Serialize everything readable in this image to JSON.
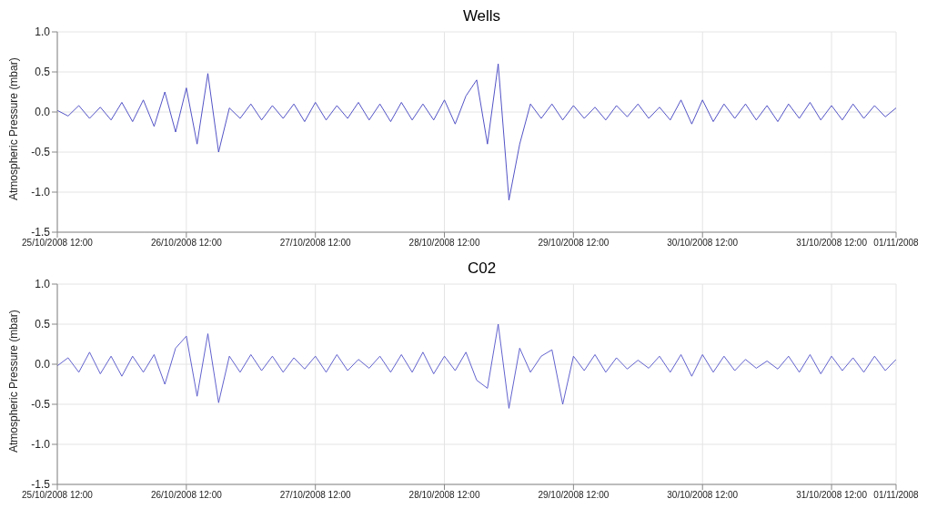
{
  "chart_data": [
    {
      "type": "line",
      "title": "Wells",
      "ylabel": "Atmospheric Pressure (mbar)",
      "grid": true,
      "x": [
        "2008-10-25T12:00",
        "2008-10-25T14:00",
        "2008-10-25T16:00",
        "2008-10-25T18:00",
        "2008-10-25T20:00",
        "2008-10-25T22:00",
        "2008-10-26T00:00",
        "2008-10-26T02:00",
        "2008-10-26T04:00",
        "2008-10-26T06:00",
        "2008-10-26T08:00",
        "2008-10-26T10:00",
        "2008-10-26T12:00",
        "2008-10-26T14:00",
        "2008-10-26T16:00",
        "2008-10-26T18:00",
        "2008-10-26T20:00",
        "2008-10-26T22:00",
        "2008-10-27T00:00",
        "2008-10-27T02:00",
        "2008-10-27T04:00",
        "2008-10-27T06:00",
        "2008-10-27T08:00",
        "2008-10-27T10:00",
        "2008-10-27T12:00",
        "2008-10-27T14:00",
        "2008-10-27T16:00",
        "2008-10-27T18:00",
        "2008-10-27T20:00",
        "2008-10-27T22:00",
        "2008-10-28T00:00",
        "2008-10-28T02:00",
        "2008-10-28T04:00",
        "2008-10-28T06:00",
        "2008-10-28T08:00",
        "2008-10-28T10:00",
        "2008-10-28T12:00",
        "2008-10-28T14:00",
        "2008-10-28T16:00",
        "2008-10-28T18:00",
        "2008-10-28T20:00",
        "2008-10-28T22:00",
        "2008-10-29T00:00",
        "2008-10-29T02:00",
        "2008-10-29T04:00",
        "2008-10-29T06:00",
        "2008-10-29T08:00",
        "2008-10-29T10:00",
        "2008-10-29T12:00",
        "2008-10-29T14:00",
        "2008-10-29T16:00",
        "2008-10-29T18:00",
        "2008-10-29T20:00",
        "2008-10-29T22:00",
        "2008-10-30T00:00",
        "2008-10-30T02:00",
        "2008-10-30T04:00",
        "2008-10-30T06:00",
        "2008-10-30T08:00",
        "2008-10-30T10:00",
        "2008-10-30T12:00",
        "2008-10-30T14:00",
        "2008-10-30T16:00",
        "2008-10-30T18:00",
        "2008-10-30T20:00",
        "2008-10-30T22:00",
        "2008-10-31T00:00",
        "2008-10-31T02:00",
        "2008-10-31T04:00",
        "2008-10-31T06:00",
        "2008-10-31T08:00",
        "2008-10-31T10:00",
        "2008-10-31T12:00",
        "2008-10-31T14:00",
        "2008-10-31T16:00",
        "2008-10-31T18:00",
        "2008-10-31T20:00",
        "2008-10-31T22:00",
        "2008-11-01T00:00"
      ],
      "series": [
        {
          "color": "#4040c0",
          "values": [
            0.02,
            -0.05,
            0.08,
            -0.08,
            0.06,
            -0.1,
            0.12,
            -0.12,
            0.15,
            -0.18,
            0.25,
            -0.25,
            0.3,
            -0.4,
            0.48,
            -0.5,
            0.05,
            -0.08,
            0.1,
            -0.1,
            0.08,
            -0.08,
            0.1,
            -0.12,
            0.12,
            -0.1,
            0.08,
            -0.08,
            0.12,
            -0.1,
            0.1,
            -0.12,
            0.12,
            -0.1,
            0.1,
            -0.1,
            0.15,
            -0.15,
            0.2,
            0.4,
            -0.4,
            0.6,
            -1.1,
            -0.4,
            0.1,
            -0.08,
            0.1,
            -0.1,
            0.08,
            -0.08,
            0.06,
            -0.1,
            0.08,
            -0.06,
            0.1,
            -0.08,
            0.06,
            -0.1,
            0.15,
            -0.15,
            0.15,
            -0.12,
            0.1,
            -0.08,
            0.1,
            -0.1,
            0.08,
            -0.12,
            0.1,
            -0.08,
            0.12,
            -0.1,
            0.08,
            -0.1,
            0.1,
            -0.08,
            0.08,
            -0.06,
            0.05
          ]
        }
      ],
      "xlim": [
        "2008-10-25T12:00",
        "2008-11-01T00:00"
      ],
      "xticks": [
        {
          "value": "2008-10-25T12:00",
          "label": "25/10/2008 12:00"
        },
        {
          "value": "2008-10-26T12:00",
          "label": "26/10/2008 12:00"
        },
        {
          "value": "2008-10-27T12:00",
          "label": "27/10/2008 12:00"
        },
        {
          "value": "2008-10-28T12:00",
          "label": "28/10/2008 12:00"
        },
        {
          "value": "2008-10-29T12:00",
          "label": "29/10/2008 12:00"
        },
        {
          "value": "2008-10-30T12:00",
          "label": "30/10/2008 12:00"
        },
        {
          "value": "2008-10-31T12:00",
          "label": "31/10/2008 12:00"
        },
        {
          "value": "2008-11-01T00:00",
          "label": "01/11/2008"
        }
      ],
      "ylim": [
        -1.5,
        1
      ],
      "yticks": [
        {
          "value": -1.5,
          "label": "-1.5"
        },
        {
          "value": -1,
          "label": "-1.0"
        },
        {
          "value": -0.5,
          "label": "-0.5"
        },
        {
          "value": 0,
          "label": "0.0"
        },
        {
          "value": 0.5,
          "label": "0.5"
        },
        {
          "value": 1,
          "label": "1.0"
        }
      ]
    },
    {
      "type": "line",
      "title": "C02",
      "ylabel": "Atmospheric Pressure (mbar)",
      "grid": true,
      "x": [
        "2008-10-25T12:00",
        "2008-10-25T14:00",
        "2008-10-25T16:00",
        "2008-10-25T18:00",
        "2008-10-25T20:00",
        "2008-10-25T22:00",
        "2008-10-26T00:00",
        "2008-10-26T02:00",
        "2008-10-26T04:00",
        "2008-10-26T06:00",
        "2008-10-26T08:00",
        "2008-10-26T10:00",
        "2008-10-26T12:00",
        "2008-10-26T14:00",
        "2008-10-26T16:00",
        "2008-10-26T18:00",
        "2008-10-26T20:00",
        "2008-10-26T22:00",
        "2008-10-27T00:00",
        "2008-10-27T02:00",
        "2008-10-27T04:00",
        "2008-10-27T06:00",
        "2008-10-27T08:00",
        "2008-10-27T10:00",
        "2008-10-27T12:00",
        "2008-10-27T14:00",
        "2008-10-27T16:00",
        "2008-10-27T18:00",
        "2008-10-27T20:00",
        "2008-10-27T22:00",
        "2008-10-28T00:00",
        "2008-10-28T02:00",
        "2008-10-28T04:00",
        "2008-10-28T06:00",
        "2008-10-28T08:00",
        "2008-10-28T10:00",
        "2008-10-28T12:00",
        "2008-10-28T14:00",
        "2008-10-28T16:00",
        "2008-10-28T18:00",
        "2008-10-28T20:00",
        "2008-10-28T22:00",
        "2008-10-29T00:00",
        "2008-10-29T02:00",
        "2008-10-29T04:00",
        "2008-10-29T06:00",
        "2008-10-29T08:00",
        "2008-10-29T10:00",
        "2008-10-29T12:00",
        "2008-10-29T14:00",
        "2008-10-29T16:00",
        "2008-10-29T18:00",
        "2008-10-29T20:00",
        "2008-10-29T22:00",
        "2008-10-30T00:00",
        "2008-10-30T02:00",
        "2008-10-30T04:00",
        "2008-10-30T06:00",
        "2008-10-30T08:00",
        "2008-10-30T10:00",
        "2008-10-30T12:00",
        "2008-10-30T14:00",
        "2008-10-30T16:00",
        "2008-10-30T18:00",
        "2008-10-30T20:00",
        "2008-10-30T22:00",
        "2008-10-31T00:00",
        "2008-10-31T02:00",
        "2008-10-31T04:00",
        "2008-10-31T06:00",
        "2008-10-31T08:00",
        "2008-10-31T10:00",
        "2008-10-31T12:00",
        "2008-10-31T14:00",
        "2008-10-31T16:00",
        "2008-10-31T18:00",
        "2008-10-31T20:00",
        "2008-10-31T22:00",
        "2008-11-01T00:00"
      ],
      "series": [
        {
          "color": "#5050c8",
          "values": [
            -0.02,
            0.08,
            -0.1,
            0.15,
            -0.12,
            0.1,
            -0.15,
            0.1,
            -0.1,
            0.12,
            -0.25,
            0.2,
            0.35,
            -0.4,
            0.38,
            -0.48,
            0.1,
            -0.1,
            0.12,
            -0.08,
            0.1,
            -0.1,
            0.08,
            -0.06,
            0.1,
            -0.1,
            0.12,
            -0.08,
            0.06,
            -0.05,
            0.1,
            -0.1,
            0.12,
            -0.1,
            0.15,
            -0.12,
            0.1,
            -0.08,
            0.15,
            -0.2,
            -0.3,
            0.5,
            -0.55,
            0.2,
            -0.1,
            0.1,
            0.18,
            -0.5,
            0.1,
            -0.08,
            0.12,
            -0.1,
            0.08,
            -0.06,
            0.05,
            -0.05,
            0.1,
            -0.1,
            0.12,
            -0.15,
            0.12,
            -0.1,
            0.1,
            -0.08,
            0.06,
            -0.05,
            0.04,
            -0.06,
            0.1,
            -0.1,
            0.12,
            -0.12,
            0.1,
            -0.08,
            0.08,
            -0.1,
            0.1,
            -0.08,
            0.06
          ]
        }
      ],
      "xlim": [
        "2008-10-25T12:00",
        "2008-11-01T00:00"
      ],
      "xticks": [
        {
          "value": "2008-10-25T12:00",
          "label": "25/10/2008 12:00"
        },
        {
          "value": "2008-10-26T12:00",
          "label": "26/10/2008 12:00"
        },
        {
          "value": "2008-10-27T12:00",
          "label": "27/10/2008 12:00"
        },
        {
          "value": "2008-10-28T12:00",
          "label": "28/10/2008 12:00"
        },
        {
          "value": "2008-10-29T12:00",
          "label": "29/10/2008 12:00"
        },
        {
          "value": "2008-10-30T12:00",
          "label": "30/10/2008 12:00"
        },
        {
          "value": "2008-10-31T12:00",
          "label": "31/10/2008 12:00"
        },
        {
          "value": "2008-11-01T00:00",
          "label": "01/11/2008"
        }
      ],
      "ylim": [
        -1.5,
        1
      ],
      "yticks": [
        {
          "value": -1.5,
          "label": "-1.5"
        },
        {
          "value": -1,
          "label": "-1.0"
        },
        {
          "value": -0.5,
          "label": "-0.5"
        },
        {
          "value": 0,
          "label": "0.0"
        },
        {
          "value": 0.5,
          "label": "0.5"
        },
        {
          "value": 1,
          "label": "1.0"
        }
      ]
    }
  ]
}
